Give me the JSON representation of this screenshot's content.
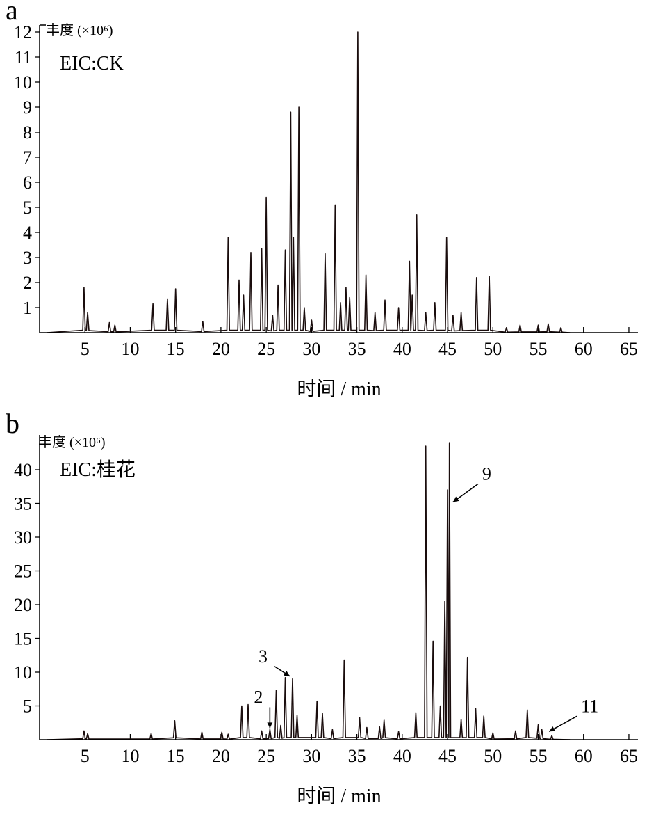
{
  "chart_data": [
    {
      "type": "line",
      "panel_label": "a",
      "ylabel": "丰度 (×10⁶)",
      "xlabel": "时间 / min",
      "annotation": "EIC:CK",
      "xlim": [
        0,
        66
      ],
      "ylim": [
        0,
        12
      ],
      "x_ticks": [
        5,
        10,
        15,
        20,
        25,
        30,
        35,
        40,
        45,
        50,
        55,
        60,
        65
      ],
      "y_ticks": [
        1,
        2,
        3,
        4,
        5,
        6,
        7,
        8,
        9,
        10,
        11,
        12
      ],
      "peaks": [
        [
          4.9,
          1.8
        ],
        [
          5.3,
          0.8
        ],
        [
          7.7,
          0.4
        ],
        [
          8.3,
          0.3
        ],
        [
          12.5,
          1.15
        ],
        [
          14.1,
          1.35
        ],
        [
          15.0,
          1.75
        ],
        [
          18.0,
          0.45
        ],
        [
          20.8,
          3.8
        ],
        [
          22.0,
          2.1
        ],
        [
          22.5,
          1.5
        ],
        [
          23.3,
          3.2
        ],
        [
          24.5,
          3.35
        ],
        [
          25.0,
          5.4
        ],
        [
          25.7,
          0.7
        ],
        [
          26.3,
          1.9
        ],
        [
          27.1,
          3.3
        ],
        [
          27.7,
          8.8
        ],
        [
          28.0,
          3.8
        ],
        [
          28.6,
          9.0
        ],
        [
          29.2,
          1.0
        ],
        [
          30.0,
          0.5
        ],
        [
          31.5,
          3.15
        ],
        [
          32.6,
          5.1
        ],
        [
          33.2,
          1.2
        ],
        [
          33.8,
          1.8
        ],
        [
          34.2,
          1.4
        ],
        [
          35.1,
          12.0
        ],
        [
          36.0,
          2.3
        ],
        [
          37.0,
          0.8
        ],
        [
          38.1,
          1.3
        ],
        [
          39.6,
          1.0
        ],
        [
          40.8,
          2.85
        ],
        [
          41.1,
          1.5
        ],
        [
          41.6,
          4.7
        ],
        [
          42.6,
          0.8
        ],
        [
          43.6,
          1.2
        ],
        [
          44.9,
          3.8
        ],
        [
          45.6,
          0.7
        ],
        [
          46.5,
          0.8
        ],
        [
          48.2,
          2.2
        ],
        [
          49.6,
          2.25
        ],
        [
          51.5,
          0.2
        ],
        [
          53.0,
          0.3
        ],
        [
          55.0,
          0.3
        ],
        [
          56.1,
          0.35
        ],
        [
          57.5,
          0.2
        ]
      ]
    },
    {
      "type": "line",
      "panel_label": "b",
      "ylabel": "丰度 (×10⁶)",
      "xlabel": "时间 / min",
      "annotation": "EIC:桂花",
      "xlim": [
        0,
        66
      ],
      "ylim": [
        0,
        45
      ],
      "x_ticks": [
        5,
        10,
        15,
        20,
        25,
        30,
        35,
        40,
        45,
        50,
        55,
        60,
        65
      ],
      "y_ticks": [
        5,
        10,
        15,
        20,
        25,
        30,
        35,
        40
      ],
      "peaks": [
        [
          4.9,
          1.3
        ],
        [
          5.3,
          0.9
        ],
        [
          12.3,
          0.9
        ],
        [
          14.9,
          2.8
        ],
        [
          17.9,
          1.1
        ],
        [
          20.1,
          1.1
        ],
        [
          20.8,
          0.8
        ],
        [
          22.3,
          5.0
        ],
        [
          23.0,
          5.2
        ],
        [
          24.5,
          1.3
        ],
        [
          25.4,
          1.5
        ],
        [
          26.1,
          7.3
        ],
        [
          26.6,
          2.1
        ],
        [
          27.1,
          9.2
        ],
        [
          27.9,
          9.0
        ],
        [
          28.4,
          3.6
        ],
        [
          30.6,
          5.7
        ],
        [
          31.2,
          3.9
        ],
        [
          32.3,
          1.5
        ],
        [
          33.6,
          11.8
        ],
        [
          35.3,
          3.3
        ],
        [
          36.1,
          1.8
        ],
        [
          37.5,
          1.9
        ],
        [
          38.0,
          2.9
        ],
        [
          39.6,
          1.2
        ],
        [
          41.5,
          4.0
        ],
        [
          42.6,
          43.5
        ],
        [
          43.4,
          14.6
        ],
        [
          44.2,
          5.0
        ],
        [
          44.7,
          20.5
        ],
        [
          45.0,
          37.0
        ],
        [
          45.2,
          44.0
        ],
        [
          46.5,
          3.0
        ],
        [
          47.2,
          12.2
        ],
        [
          48.1,
          4.6
        ],
        [
          49.0,
          3.5
        ],
        [
          50.0,
          1.0
        ],
        [
          52.5,
          1.3
        ],
        [
          53.8,
          4.4
        ],
        [
          55.0,
          2.2
        ],
        [
          55.4,
          1.5
        ],
        [
          56.5,
          0.6
        ]
      ],
      "labels": [
        {
          "text": "2",
          "x": 25.4,
          "y": 1.5
        },
        {
          "text": "3",
          "x": 27.6,
          "y": 9.2
        },
        {
          "text": "9",
          "x": 45.6,
          "y": 35.0
        },
        {
          "text": "11",
          "x": 56.2,
          "y": 1.0
        }
      ]
    }
  ]
}
